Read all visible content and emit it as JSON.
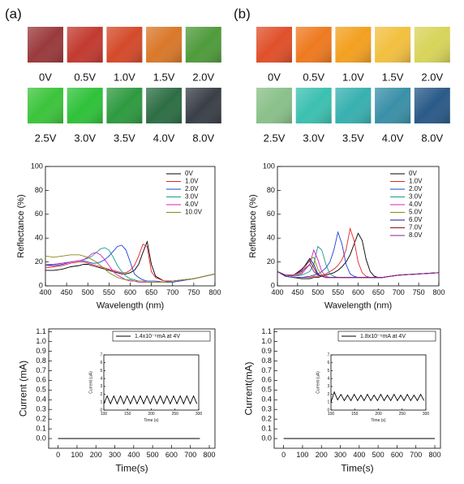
{
  "panels": [
    {
      "label": "(a)",
      "swatches": [
        {
          "label": "0V",
          "color": "#9a3a3c"
        },
        {
          "label": "0.5V",
          "color": "#c23a30"
        },
        {
          "label": "1.0V",
          "color": "#d44a2a"
        },
        {
          "label": "1.5V",
          "color": "#d9782a"
        },
        {
          "label": "2.0V",
          "color": "#4f9b3c"
        },
        {
          "label": "2.5V",
          "color": "#3cc43c"
        },
        {
          "label": "3.0V",
          "color": "#2fc23a"
        },
        {
          "label": "3.5V",
          "color": "#2e9a40"
        },
        {
          "label": "4.0V",
          "color": "#2d6e45"
        },
        {
          "label": "8.0V",
          "color": "#3a4048"
        }
      ]
    },
    {
      "label": "(b)",
      "swatches": [
        {
          "label": "0V",
          "color": "#e0502a"
        },
        {
          "label": "0.5V",
          "color": "#ee7a20"
        },
        {
          "label": "1.0V",
          "color": "#f3a020"
        },
        {
          "label": "1.5V",
          "color": "#f2c040"
        },
        {
          "label": "2.0V",
          "color": "#d8d45a"
        },
        {
          "label": "2.5V",
          "color": "#8ac08a"
        },
        {
          "label": "3.0V",
          "color": "#3cc0b0"
        },
        {
          "label": "3.5V",
          "color": "#38b0b0"
        },
        {
          "label": "4.0V",
          "color": "#3a90a8"
        },
        {
          "label": "8.0V",
          "color": "#2a5a88"
        }
      ]
    }
  ],
  "chart_data": [
    {
      "type": "line",
      "xlabel": "Wavelength (nm)",
      "ylabel": "Reflectance (%)",
      "xlim": [
        400,
        800
      ],
      "ylim": [
        0,
        100
      ],
      "xticks": [
        400,
        450,
        500,
        550,
        600,
        650,
        700,
        750,
        800
      ],
      "yticks": [
        0,
        20,
        40,
        60,
        80,
        100
      ],
      "legend": "upper right",
      "x": [
        400,
        420,
        440,
        460,
        480,
        490,
        500,
        510,
        520,
        530,
        540,
        550,
        560,
        570,
        580,
        590,
        600,
        610,
        620,
        630,
        640,
        650,
        660,
        680,
        700,
        750,
        800
      ],
      "series": [
        {
          "name": "0V",
          "color": "#000000",
          "values": [
            13,
            13,
            14,
            16,
            17,
            18,
            18,
            17,
            16,
            15,
            14,
            13,
            12,
            11,
            10,
            10,
            11,
            13,
            18,
            28,
            37,
            18,
            8,
            4,
            4,
            6,
            10
          ]
        },
        {
          "name": "1.0V",
          "color": "#e8202a",
          "values": [
            15,
            16,
            17,
            19,
            20,
            20,
            19,
            18,
            17,
            16,
            15,
            14,
            13,
            12,
            11,
            11,
            13,
            17,
            25,
            35,
            33,
            12,
            7,
            4,
            4,
            6,
            10
          ]
        },
        {
          "name": "2.0V",
          "color": "#1f3fd0",
          "values": [
            17,
            17,
            18,
            20,
            21,
            21,
            20,
            19,
            19,
            20,
            22,
            25,
            29,
            33,
            34,
            30,
            20,
            10,
            7,
            5,
            4,
            4,
            4,
            3,
            3,
            6,
            10
          ]
        },
        {
          "name": "3.0V",
          "color": "#1a9a8a",
          "values": [
            18,
            18,
            19,
            20,
            21,
            22,
            23,
            25,
            28,
            31,
            32,
            30,
            24,
            17,
            12,
            8,
            6,
            5,
            4,
            4,
            3,
            3,
            3,
            3,
            4,
            6,
            10
          ]
        },
        {
          "name": "4.0V",
          "color": "#d020c8",
          "values": [
            17,
            18,
            19,
            20,
            21,
            22,
            24,
            27,
            28,
            26,
            22,
            17,
            12,
            9,
            7,
            5,
            4,
            4,
            3,
            3,
            3,
            3,
            3,
            3,
            4,
            6,
            10
          ]
        },
        {
          "name": "10.0V",
          "color": "#8a8a10",
          "values": [
            25,
            24,
            25,
            26,
            26,
            25,
            24,
            22,
            20,
            17,
            14,
            11,
            9,
            7,
            6,
            5,
            5,
            4,
            4,
            4,
            3,
            3,
            3,
            3,
            4,
            6,
            10
          ]
        }
      ]
    },
    {
      "type": "line",
      "xlabel": "Time(s)",
      "ylabel": "Current (mA)",
      "xlim": [
        -50,
        830
      ],
      "ylim": [
        -0.1,
        1.13
      ],
      "xticks": [
        0,
        100,
        200,
        300,
        400,
        500,
        600,
        700,
        800
      ],
      "yticks": [
        {
          "value": 0,
          "label": "0.0"
        },
        0.1,
        0.2,
        0.3,
        0.4,
        0.5,
        0.6,
        0.7,
        0.8,
        0.9,
        {
          "value": 1,
          "label": "1.0"
        },
        1.1
      ],
      "legend": "upper right",
      "x": [
        0,
        750
      ],
      "series": [
        {
          "name": "1.4x10⁻⁶mA at 4V",
          "color": "#000000",
          "values": [
            0,
            0
          ]
        }
      ]
    },
    {
      "type": "line",
      "xlabel": "Time (s)",
      "ylabel": "Current (uA)",
      "xlim": [
        100,
        300
      ],
      "ylim": [
        0,
        7
      ],
      "xticks": [
        100,
        150,
        200,
        250,
        300
      ],
      "yticks": [
        0,
        1,
        2,
        3,
        4,
        5,
        6,
        7
      ],
      "x": [
        100,
        107,
        114,
        121,
        128,
        135,
        142,
        149,
        156,
        163,
        170,
        177,
        184,
        191,
        198,
        205,
        212,
        219,
        226,
        233,
        240,
        247,
        254,
        261,
        268,
        275,
        282,
        289,
        296
      ],
      "series": [
        {
          "color": "#000000",
          "values": [
            0.8,
            1.8,
            0.8,
            1.8,
            0.8,
            1.8,
            0.8,
            1.8,
            0.8,
            1.8,
            0.8,
            1.8,
            0.8,
            1.8,
            0.8,
            1.8,
            0.8,
            1.8,
            0.8,
            1.8,
            0.8,
            1.8,
            0.8,
            1.8,
            0.8,
            1.8,
            0.8,
            1.8,
            0.8
          ]
        }
      ]
    },
    {
      "type": "line",
      "xlabel": "Wavelength (nm)",
      "ylabel": "Reflectance (%)",
      "xlim": [
        400,
        800
      ],
      "ylim": [
        0,
        100
      ],
      "xticks": [
        400,
        450,
        500,
        550,
        600,
        650,
        700,
        750,
        800
      ],
      "yticks": [
        0,
        20,
        40,
        60,
        80,
        100
      ],
      "legend": "upper right",
      "x": [
        400,
        420,
        440,
        460,
        480,
        490,
        500,
        510,
        520,
        530,
        540,
        550,
        560,
        570,
        580,
        590,
        600,
        610,
        620,
        630,
        640,
        650,
        660,
        680,
        700,
        750,
        800
      ],
      "series": [
        {
          "name": "0V",
          "color": "#000000",
          "values": [
            12,
            8,
            7,
            6,
            6,
            7,
            7,
            8,
            9,
            10,
            11,
            13,
            16,
            20,
            26,
            35,
            44,
            38,
            22,
            12,
            8,
            7,
            7,
            8,
            9,
            10,
            11
          ]
        },
        {
          "name": "1.0V",
          "color": "#e8202a",
          "values": [
            12,
            8,
            7,
            7,
            7,
            8,
            8,
            9,
            10,
            12,
            14,
            17,
            22,
            30,
            48,
            38,
            20,
            11,
            8,
            7,
            7,
            7,
            7,
            8,
            9,
            10,
            11
          ]
        },
        {
          "name": "2.0V",
          "color": "#1f3fd0",
          "values": [
            12,
            8,
            7,
            7,
            8,
            9,
            10,
            12,
            15,
            20,
            30,
            45,
            35,
            18,
            10,
            8,
            7,
            7,
            7,
            7,
            7,
            7,
            7,
            8,
            9,
            10,
            11
          ]
        },
        {
          "name": "3.0V",
          "color": "#1a9a8a",
          "values": [
            12,
            9,
            8,
            9,
            12,
            18,
            33,
            30,
            18,
            10,
            8,
            7,
            7,
            7,
            7,
            7,
            7,
            7,
            7,
            7,
            7,
            7,
            7,
            8,
            9,
            10,
            11
          ]
        },
        {
          "name": "4.0V",
          "color": "#d020c8",
          "values": [
            12,
            9,
            8,
            10,
            18,
            30,
            22,
            12,
            8,
            7,
            7,
            7,
            7,
            7,
            7,
            7,
            7,
            7,
            7,
            7,
            7,
            7,
            7,
            8,
            9,
            10,
            11
          ]
        },
        {
          "name": "5.0V",
          "color": "#8a8a10",
          "values": [
            12,
            9,
            8,
            11,
            22,
            24,
            14,
            9,
            7,
            7,
            7,
            7,
            7,
            7,
            7,
            7,
            7,
            7,
            7,
            7,
            7,
            7,
            7,
            8,
            9,
            10,
            11
          ]
        },
        {
          "name": "6.0V",
          "color": "#101a80",
          "values": [
            12,
            9,
            9,
            13,
            23,
            18,
            10,
            8,
            7,
            7,
            7,
            7,
            7,
            7,
            7,
            7,
            7,
            7,
            7,
            7,
            7,
            7,
            7,
            8,
            9,
            10,
            11
          ]
        },
        {
          "name": "7.0V",
          "color": "#8a1010",
          "values": [
            12,
            9,
            9,
            14,
            21,
            15,
            9,
            8,
            7,
            7,
            7,
            7,
            7,
            7,
            7,
            7,
            7,
            7,
            7,
            7,
            7,
            7,
            7,
            8,
            9,
            10,
            11
          ]
        },
        {
          "name": "8.0V",
          "color": "#8a20a0",
          "values": [
            12,
            9,
            9,
            12,
            18,
            12,
            9,
            8,
            7,
            7,
            7,
            7,
            7,
            7,
            7,
            7,
            7,
            7,
            7,
            7,
            7,
            7,
            7,
            8,
            9,
            10,
            11
          ]
        }
      ]
    },
    {
      "type": "line",
      "xlabel": "Time(s)",
      "ylabel": "Current(mA)",
      "xlim": [
        -50,
        830
      ],
      "ylim": [
        -0.1,
        1.13
      ],
      "xticks": [
        0,
        100,
        200,
        300,
        400,
        500,
        600,
        700,
        800
      ],
      "yticks": [
        {
          "value": 0,
          "label": "0.0"
        },
        0.1,
        0.2,
        0.3,
        0.4,
        0.5,
        0.6,
        0.7,
        0.8,
        0.9,
        {
          "value": 1,
          "label": "1.0"
        },
        1.1
      ],
      "legend": "upper right",
      "x": [
        0,
        800
      ],
      "series": [
        {
          "name": "1.8x10⁻⁶mA at 4V",
          "color": "#000000",
          "values": [
            0,
            0
          ]
        }
      ]
    },
    {
      "type": "line",
      "xlabel": "Time (s)",
      "ylabel": "Current (uA)",
      "xlim": [
        100,
        300
      ],
      "ylim": [
        0,
        7
      ],
      "xticks": [
        100,
        150,
        200,
        250,
        300
      ],
      "yticks": [
        0,
        1,
        2,
        3,
        4,
        5,
        6,
        7
      ],
      "x": [
        100,
        107,
        114,
        121,
        128,
        135,
        142,
        149,
        156,
        163,
        170,
        177,
        184,
        191,
        198,
        205,
        212,
        219,
        226,
        233,
        240,
        247,
        254,
        261,
        268,
        275,
        282,
        289,
        296
      ],
      "series": [
        {
          "color": "#000000",
          "values": [
            1.0,
            2.3,
            1.3,
            2.0,
            1.2,
            1.9,
            1.2,
            2.0,
            1.2,
            1.9,
            1.2,
            2.0,
            1.2,
            1.9,
            1.2,
            2.0,
            1.2,
            1.9,
            1.2,
            2.0,
            1.2,
            1.9,
            1.2,
            2.0,
            1.2,
            1.9,
            1.2,
            2.0,
            1.2
          ]
        }
      ]
    }
  ]
}
